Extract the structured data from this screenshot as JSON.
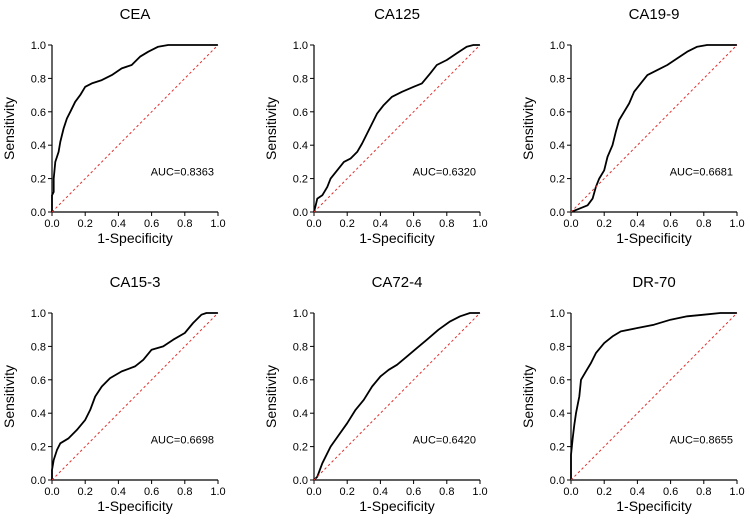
{
  "figure": {
    "x_ticks": [
      "0.0",
      "0.2",
      "0.4",
      "0.6",
      "0.8",
      "1.0"
    ],
    "y_ticks": [
      "0.0",
      "0.2",
      "0.4",
      "0.6",
      "0.8",
      "1.0"
    ],
    "colors": {
      "curve": "#000000",
      "reference": "#e03030"
    }
  },
  "chart_data": [
    {
      "type": "line",
      "title": "CEA",
      "xlabel": "1-Specificity",
      "ylabel": "Sensitivity",
      "xlim": [
        0,
        1
      ],
      "ylim": [
        0,
        1
      ],
      "annotation": "AUC=0.8363",
      "series": [
        {
          "name": "ROC",
          "points": [
            [
              0,
              0
            ],
            [
              0,
              0.1
            ],
            [
              0.01,
              0.12
            ],
            [
              0.01,
              0.2
            ],
            [
              0.02,
              0.3
            ],
            [
              0.04,
              0.36
            ],
            [
              0.05,
              0.42
            ],
            [
              0.07,
              0.5
            ],
            [
              0.09,
              0.56
            ],
            [
              0.11,
              0.6
            ],
            [
              0.14,
              0.66
            ],
            [
              0.17,
              0.7
            ],
            [
              0.2,
              0.75
            ],
            [
              0.24,
              0.77
            ],
            [
              0.3,
              0.79
            ],
            [
              0.36,
              0.82
            ],
            [
              0.42,
              0.86
            ],
            [
              0.48,
              0.88
            ],
            [
              0.53,
              0.93
            ],
            [
              0.58,
              0.96
            ],
            [
              0.64,
              0.99
            ],
            [
              0.7,
              1
            ],
            [
              1,
              1
            ]
          ]
        },
        {
          "name": "Reference",
          "points": [
            [
              0,
              0
            ],
            [
              1,
              1
            ]
          ]
        }
      ]
    },
    {
      "type": "line",
      "title": "CA125",
      "xlabel": "1-Specificity",
      "ylabel": "Sensitivity",
      "xlim": [
        0,
        1
      ],
      "ylim": [
        0,
        1
      ],
      "annotation": "AUC=0.6320",
      "series": [
        {
          "name": "ROC",
          "points": [
            [
              0,
              0
            ],
            [
              0.01,
              0.04
            ],
            [
              0.02,
              0.08
            ],
            [
              0.05,
              0.1
            ],
            [
              0.08,
              0.15
            ],
            [
              0.1,
              0.2
            ],
            [
              0.14,
              0.25
            ],
            [
              0.18,
              0.3
            ],
            [
              0.22,
              0.32
            ],
            [
              0.26,
              0.36
            ],
            [
              0.29,
              0.41
            ],
            [
              0.32,
              0.47
            ],
            [
              0.35,
              0.53
            ],
            [
              0.38,
              0.59
            ],
            [
              0.42,
              0.64
            ],
            [
              0.47,
              0.69
            ],
            [
              0.53,
              0.72
            ],
            [
              0.6,
              0.75
            ],
            [
              0.65,
              0.77
            ],
            [
              0.7,
              0.83
            ],
            [
              0.74,
              0.88
            ],
            [
              0.8,
              0.91
            ],
            [
              0.86,
              0.95
            ],
            [
              0.92,
              0.99
            ],
            [
              0.96,
              1
            ],
            [
              1,
              1
            ]
          ]
        },
        {
          "name": "Reference",
          "points": [
            [
              0,
              0
            ],
            [
              1,
              1
            ]
          ]
        }
      ]
    },
    {
      "type": "line",
      "title": "CA19-9",
      "xlabel": "1-Specificity",
      "ylabel": "Sensitivity",
      "xlim": [
        0,
        1
      ],
      "ylim": [
        0,
        1
      ],
      "annotation": "AUC=0.6681",
      "series": [
        {
          "name": "ROC",
          "points": [
            [
              0,
              0
            ],
            [
              0.05,
              0.02
            ],
            [
              0.1,
              0.04
            ],
            [
              0.13,
              0.08
            ],
            [
              0.15,
              0.15
            ],
            [
              0.17,
              0.2
            ],
            [
              0.2,
              0.25
            ],
            [
              0.22,
              0.33
            ],
            [
              0.25,
              0.4
            ],
            [
              0.27,
              0.48
            ],
            [
              0.29,
              0.55
            ],
            [
              0.32,
              0.6
            ],
            [
              0.35,
              0.65
            ],
            [
              0.38,
              0.72
            ],
            [
              0.42,
              0.77
            ],
            [
              0.46,
              0.82
            ],
            [
              0.52,
              0.85
            ],
            [
              0.58,
              0.88
            ],
            [
              0.64,
              0.92
            ],
            [
              0.7,
              0.96
            ],
            [
              0.76,
              0.99
            ],
            [
              0.82,
              1
            ],
            [
              1,
              1
            ]
          ]
        },
        {
          "name": "Reference",
          "points": [
            [
              0,
              0
            ],
            [
              1,
              1
            ]
          ]
        }
      ]
    },
    {
      "type": "line",
      "title": "CA15-3",
      "xlabel": "1-Specificity",
      "ylabel": "Sensitivity",
      "xlim": [
        0,
        1
      ],
      "ylim": [
        0,
        1
      ],
      "annotation": "AUC=0.6698",
      "series": [
        {
          "name": "ROC",
          "points": [
            [
              0,
              0
            ],
            [
              0,
              0.06
            ],
            [
              0.01,
              0.12
            ],
            [
              0.03,
              0.18
            ],
            [
              0.05,
              0.22
            ],
            [
              0.1,
              0.25
            ],
            [
              0.15,
              0.3
            ],
            [
              0.2,
              0.36
            ],
            [
              0.23,
              0.42
            ],
            [
              0.26,
              0.5
            ],
            [
              0.3,
              0.56
            ],
            [
              0.35,
              0.61
            ],
            [
              0.42,
              0.65
            ],
            [
              0.5,
              0.68
            ],
            [
              0.55,
              0.72
            ],
            [
              0.6,
              0.78
            ],
            [
              0.67,
              0.8
            ],
            [
              0.73,
              0.84
            ],
            [
              0.8,
              0.88
            ],
            [
              0.85,
              0.94
            ],
            [
              0.9,
              0.99
            ],
            [
              0.93,
              1
            ],
            [
              1,
              1
            ]
          ]
        },
        {
          "name": "Reference",
          "points": [
            [
              0,
              0
            ],
            [
              1,
              1
            ]
          ]
        }
      ]
    },
    {
      "type": "line",
      "title": "CA72-4",
      "xlabel": "1-Specificity",
      "ylabel": "Sensitivity",
      "xlim": [
        0,
        1
      ],
      "ylim": [
        0,
        1
      ],
      "annotation": "AUC=0.6420",
      "series": [
        {
          "name": "ROC",
          "points": [
            [
              0,
              0
            ],
            [
              0.02,
              0.02
            ],
            [
              0.05,
              0.1
            ],
            [
              0.1,
              0.2
            ],
            [
              0.15,
              0.27
            ],
            [
              0.2,
              0.34
            ],
            [
              0.25,
              0.42
            ],
            [
              0.3,
              0.48
            ],
            [
              0.35,
              0.56
            ],
            [
              0.4,
              0.62
            ],
            [
              0.45,
              0.66
            ],
            [
              0.5,
              0.69
            ],
            [
              0.56,
              0.74
            ],
            [
              0.62,
              0.79
            ],
            [
              0.68,
              0.84
            ],
            [
              0.75,
              0.9
            ],
            [
              0.82,
              0.95
            ],
            [
              0.88,
              0.98
            ],
            [
              0.94,
              1
            ],
            [
              1,
              1
            ]
          ]
        },
        {
          "name": "Reference",
          "points": [
            [
              0,
              0
            ],
            [
              1,
              1
            ]
          ]
        }
      ]
    },
    {
      "type": "line",
      "title": "DR-70",
      "xlabel": "1-Specificity",
      "ylabel": "Sensitivity",
      "xlim": [
        0,
        1
      ],
      "ylim": [
        0,
        1
      ],
      "annotation": "AUC=0.8655",
      "series": [
        {
          "name": "ROC",
          "points": [
            [
              0,
              0
            ],
            [
              0,
              0.15
            ],
            [
              0.01,
              0.25
            ],
            [
              0.02,
              0.33
            ],
            [
              0.03,
              0.4
            ],
            [
              0.05,
              0.5
            ],
            [
              0.06,
              0.6
            ],
            [
              0.09,
              0.65
            ],
            [
              0.12,
              0.7
            ],
            [
              0.15,
              0.76
            ],
            [
              0.2,
              0.82
            ],
            [
              0.25,
              0.86
            ],
            [
              0.3,
              0.89
            ],
            [
              0.4,
              0.91
            ],
            [
              0.5,
              0.93
            ],
            [
              0.6,
              0.96
            ],
            [
              0.7,
              0.98
            ],
            [
              0.8,
              0.99
            ],
            [
              0.9,
              1
            ],
            [
              1,
              1
            ]
          ]
        },
        {
          "name": "Reference",
          "points": [
            [
              0,
              0
            ],
            [
              1,
              1
            ]
          ]
        }
      ]
    }
  ]
}
